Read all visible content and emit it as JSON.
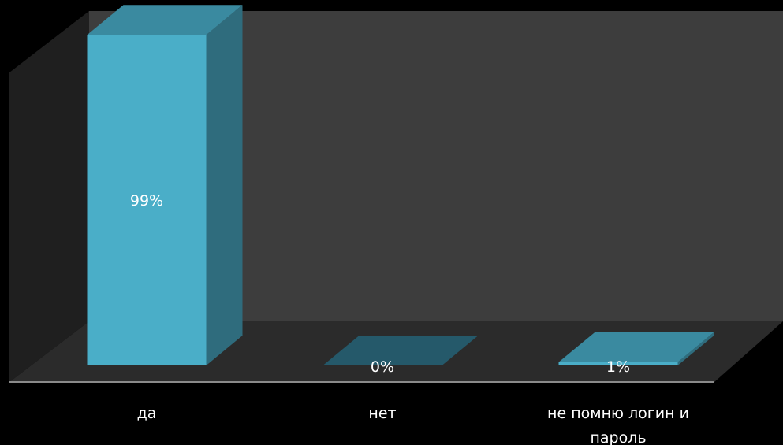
{
  "chart_data": {
    "type": "bar",
    "three_d": true,
    "categories": [
      "да",
      "нет",
      "не помню логин и пароль"
    ],
    "category_label_lines": [
      [
        "да"
      ],
      [
        "нет"
      ],
      [
        "не помню логин и",
        "пароль"
      ]
    ],
    "values": [
      99,
      0,
      1
    ],
    "data_labels": [
      "99%",
      "0%",
      "1%"
    ],
    "ylim": [
      0,
      100
    ],
    "title": "",
    "xlabel": "",
    "ylabel": "",
    "grid": false,
    "legend": "none"
  },
  "colors": {
    "background": "#000000",
    "back_wall": "#3d3d3d",
    "side_wall": "#1f1f1f",
    "floor": "#2b2b2b",
    "bar_front": "#4aaec8",
    "bar_top": "#3a8aa0",
    "bar_side": "#2f6c7d",
    "empty_top": "#25596a"
  }
}
